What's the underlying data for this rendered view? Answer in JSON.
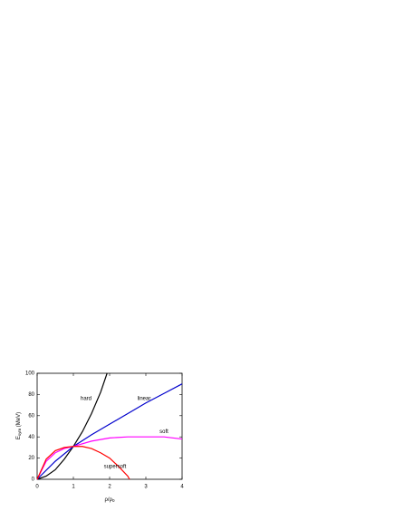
{
  "chart_data": {
    "type": "line",
    "xlabel": {
      "main": "ρ/ρ",
      "sub": "0"
    },
    "ylabel": {
      "main": "E",
      "sub": "sym",
      "rest": " (MeV)"
    },
    "xlim": [
      0,
      4
    ],
    "xticks": [
      0,
      1,
      2,
      3,
      4
    ],
    "ylim": [
      0,
      100
    ],
    "yticks": [
      0,
      20,
      40,
      60,
      80,
      100
    ],
    "series": [
      {
        "name": "hard",
        "color": "#000000",
        "x": [
          0,
          0.25,
          0.5,
          0.75,
          1,
          1.25,
          1.5,
          1.75,
          1.93
        ],
        "values": [
          0,
          3,
          9,
          19,
          31,
          45,
          62,
          82,
          100
        ]
      },
      {
        "name": "linear",
        "color": "#0000cc",
        "x": [
          0,
          0.5,
          1,
          1.5,
          2,
          2.5,
          3,
          3.5,
          4
        ],
        "values": [
          0,
          17,
          31,
          42,
          52,
          62,
          72,
          81,
          90
        ]
      },
      {
        "name": "soft",
        "color": "#ff00ff",
        "x": [
          0,
          0.25,
          0.5,
          0.75,
          1,
          1.5,
          2,
          2.5,
          3,
          3.5,
          4
        ],
        "values": [
          0,
          17,
          25,
          29,
          31,
          36,
          39,
          40,
          40,
          40,
          38
        ]
      },
      {
        "name": "supersoft",
        "color": "#ff0000",
        "x": [
          0,
          0.25,
          0.5,
          0.75,
          1,
          1.25,
          1.5,
          1.75,
          2,
          2.25,
          2.5,
          2.55
        ],
        "values": [
          0,
          19,
          27,
          30,
          31,
          31,
          29,
          25,
          20,
          12,
          3,
          0
        ]
      }
    ]
  }
}
